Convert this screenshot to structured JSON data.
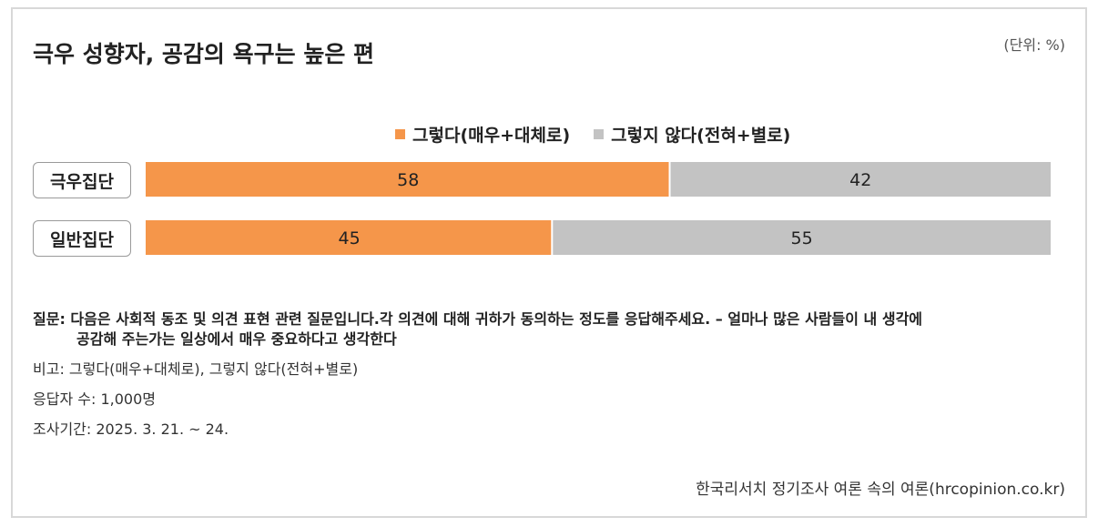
{
  "title": "극우 성향자, 공감의 욕구는 높은 편",
  "unit": "(단위: %)",
  "legend": {
    "agree": "그렇다(매우+대체로)",
    "disagree": "그렇지 않다(전혀+별로)"
  },
  "colors": {
    "agree": "#f5964a",
    "disagree": "#c3c3c3"
  },
  "chart_data": {
    "type": "bar",
    "stacked": true,
    "orientation": "horizontal",
    "categories": [
      "극우집단",
      "일반집단"
    ],
    "series": [
      {
        "name": "그렇다(매우+대체로)",
        "values": [
          58,
          45
        ]
      },
      {
        "name": "그렇지 않다(전혀+별로)",
        "values": [
          42,
          55
        ]
      }
    ],
    "xlim": [
      0,
      100
    ],
    "grid": false,
    "legend_position": "top-center"
  },
  "notes": {
    "question_line1": "질문: 다음은 사회적 동조 및 의견 표현 관련 질문입니다.각 의견에 대해 귀하가 동의하는 정도를 응답해주세요. – 얼마나 많은 사람들이 내 생각에",
    "question_line2": "공감해 주는가는 일상에서 매우 중요하다고 생각한다",
    "remark": "비고: 그렇다(매우+대체로), 그렇지 않다(전혀+별로)",
    "respondents": "응답자 수: 1,000명",
    "period": "조사기간: 2025. 3. 21. ~ 24."
  },
  "source": "한국리서치 정기조사 여론 속의 여론(hrcopinion.co.kr)"
}
